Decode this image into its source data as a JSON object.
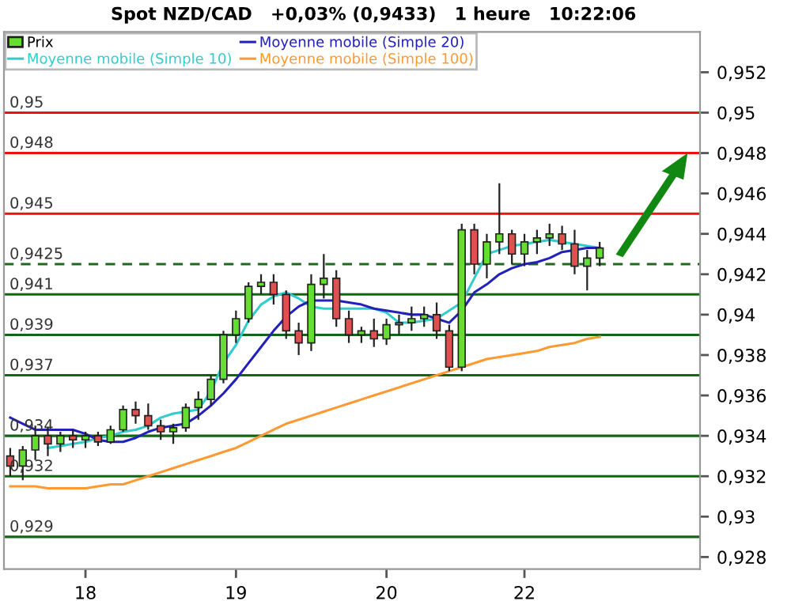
{
  "chart_data": {
    "type": "candlestick",
    "title": "Spot NZD/CAD   +0,03% (0,9433)   1 heure   10:22:06",
    "categories": [
      null,
      null,
      null,
      null,
      null,
      null,
      "18",
      null,
      null,
      null,
      null,
      null,
      null,
      null,
      null,
      null,
      null,
      null,
      "19",
      null,
      null,
      null,
      null,
      null,
      null,
      null,
      null,
      null,
      null,
      null,
      "20",
      null,
      null,
      null,
      null,
      null,
      null,
      null,
      null,
      null,
      null,
      "22",
      null,
      null,
      null,
      null,
      null,
      null
    ],
    "series": [
      {
        "name": "Prix",
        "colors": [
          "#e05050",
          "#66dd33",
          "#66dd33",
          "#e05050",
          "#66dd33",
          "#e05050",
          "#66dd33",
          "#e05050",
          "#66dd33",
          "#66dd33",
          "#e05050",
          "#e05050",
          "#e05050",
          "#66dd33",
          "#66dd33",
          "#66dd33",
          "#66dd33",
          "#66dd33",
          "#66dd33",
          "#66dd33",
          "#66dd33",
          "#e05050",
          "#e05050",
          "#e05050",
          "#66dd33",
          "#66dd33",
          "#e05050",
          "#e05050",
          "#66dd33",
          "#e05050",
          "#66dd33",
          "#66dd33",
          "#66dd33",
          "#66dd33",
          "#e05050",
          "#e05050",
          "#66dd33",
          "#e05050",
          "#66dd33",
          "#66dd33",
          "#e05050",
          "#66dd33",
          "#66dd33",
          "#66dd33",
          "#e05050",
          "#e05050",
          "#66dd33",
          "#66dd33"
        ],
        "ohlc": [
          [
            0.933,
            0.9334,
            0.932,
            0.9325
          ],
          [
            0.9325,
            0.9335,
            0.9318,
            0.9333
          ],
          [
            0.9333,
            0.9345,
            0.9328,
            0.934
          ],
          [
            0.934,
            0.9344,
            0.933,
            0.9336
          ],
          [
            0.9336,
            0.9342,
            0.9332,
            0.934
          ],
          [
            0.934,
            0.9343,
            0.9334,
            0.9338
          ],
          [
            0.9338,
            0.9342,
            0.9334,
            0.934
          ],
          [
            0.934,
            0.9342,
            0.9335,
            0.9337
          ],
          [
            0.9337,
            0.9345,
            0.9336,
            0.9343
          ],
          [
            0.9343,
            0.9355,
            0.9342,
            0.9353
          ],
          [
            0.9353,
            0.9357,
            0.9346,
            0.935
          ],
          [
            0.935,
            0.9356,
            0.9343,
            0.9345
          ],
          [
            0.9345,
            0.9348,
            0.9338,
            0.9342
          ],
          [
            0.9342,
            0.9346,
            0.9336,
            0.9344
          ],
          [
            0.9344,
            0.9356,
            0.9342,
            0.9354
          ],
          [
            0.9354,
            0.9362,
            0.9348,
            0.9358
          ],
          [
            0.9358,
            0.937,
            0.9355,
            0.9368
          ],
          [
            0.9368,
            0.9392,
            0.9366,
            0.939
          ],
          [
            0.939,
            0.9402,
            0.9386,
            0.9398
          ],
          [
            0.9398,
            0.9416,
            0.9396,
            0.9414
          ],
          [
            0.9414,
            0.942,
            0.941,
            0.9416
          ],
          [
            0.9416,
            0.942,
            0.9405,
            0.941
          ],
          [
            0.941,
            0.9412,
            0.9388,
            0.9392
          ],
          [
            0.9392,
            0.9396,
            0.938,
            0.9386
          ],
          [
            0.9386,
            0.942,
            0.9382,
            0.9415
          ],
          [
            0.9415,
            0.943,
            0.9408,
            0.9418
          ],
          [
            0.9418,
            0.9422,
            0.9394,
            0.9398
          ],
          [
            0.9398,
            0.9402,
            0.9386,
            0.939
          ],
          [
            0.939,
            0.9394,
            0.9386,
            0.9392
          ],
          [
            0.9392,
            0.9398,
            0.9384,
            0.9388
          ],
          [
            0.9388,
            0.9398,
            0.9385,
            0.9395
          ],
          [
            0.9395,
            0.94,
            0.939,
            0.9396
          ],
          [
            0.9396,
            0.9404,
            0.9392,
            0.9398
          ],
          [
            0.9398,
            0.9404,
            0.9394,
            0.94
          ],
          [
            0.94,
            0.9406,
            0.9388,
            0.9392
          ],
          [
            0.9392,
            0.9395,
            0.9372,
            0.9374
          ],
          [
            0.9374,
            0.9445,
            0.9372,
            0.9442
          ],
          [
            0.9442,
            0.9445,
            0.942,
            0.9425
          ],
          [
            0.9425,
            0.944,
            0.9418,
            0.9436
          ],
          [
            0.9436,
            0.9465,
            0.943,
            0.944
          ],
          [
            0.944,
            0.9442,
            0.9425,
            0.943
          ],
          [
            0.943,
            0.944,
            0.9424,
            0.9436
          ],
          [
            0.9436,
            0.9442,
            0.943,
            0.9438
          ],
          [
            0.9438,
            0.9445,
            0.9434,
            0.944
          ],
          [
            0.944,
            0.9444,
            0.9432,
            0.9435
          ],
          [
            0.9435,
            0.9442,
            0.942,
            0.9424
          ],
          [
            0.9424,
            0.9432,
            0.9412,
            0.9428
          ],
          [
            0.9428,
            0.9436,
            0.9424,
            0.9433
          ]
        ]
      },
      {
        "name": "Moyenne mobile (Simple 10)",
        "type": "line",
        "color": "#33cccc",
        "values": [
          null,
          null,
          null,
          0.9334,
          0.9335,
          0.9336,
          0.9337,
          0.9339,
          0.934,
          0.9342,
          0.9343,
          0.9345,
          0.9349,
          0.9351,
          0.9352,
          0.9353,
          0.9362,
          0.9376,
          0.9385,
          0.9397,
          0.9405,
          0.9409,
          0.9411,
          0.9408,
          0.9404,
          0.9403,
          0.9403,
          0.9403,
          0.9403,
          0.9403,
          0.9401,
          0.9396,
          0.9396,
          0.9397,
          0.9398,
          0.9402,
          0.9406,
          0.9418,
          0.943,
          0.9432,
          0.9434,
          0.9435,
          0.9436,
          0.9437,
          0.9436,
          0.9435,
          0.9434,
          0.9433
        ]
      },
      {
        "name": "Moyenne mobile (Simple 20)",
        "type": "line",
        "color": "#2222bb",
        "values": [
          0.9349,
          0.9346,
          0.9343,
          0.9343,
          0.9343,
          0.9343,
          0.9341,
          0.9338,
          0.9337,
          0.9337,
          0.9339,
          0.9342,
          0.9344,
          0.9345,
          0.9346,
          0.935,
          0.9355,
          0.9361,
          0.9368,
          0.9376,
          0.9384,
          0.9392,
          0.9399,
          0.9404,
          0.9407,
          0.9407,
          0.9407,
          0.9406,
          0.9405,
          0.9403,
          0.9402,
          0.9401,
          0.94,
          0.94,
          0.9398,
          0.9396,
          0.9402,
          0.9411,
          0.9415,
          0.942,
          0.9423,
          0.9425,
          0.9426,
          0.9428,
          0.9431,
          0.9432,
          0.9433,
          0.9433
        ]
      },
      {
        "name": "Moyenne mobile (Simple 100)",
        "type": "line",
        "color": "#ff9933",
        "values": [
          0.9315,
          0.9315,
          0.9315,
          0.9314,
          0.9314,
          0.9314,
          0.9314,
          0.9315,
          0.9316,
          0.9316,
          0.9318,
          0.932,
          0.9322,
          0.9324,
          0.9326,
          0.9328,
          0.933,
          0.9332,
          0.9334,
          0.9337,
          0.934,
          0.9343,
          0.9346,
          0.9348,
          0.935,
          0.9352,
          0.9354,
          0.9356,
          0.9358,
          0.936,
          0.9362,
          0.9364,
          0.9366,
          0.9368,
          0.937,
          0.9372,
          0.9374,
          0.9376,
          0.9378,
          0.9379,
          0.938,
          0.9381,
          0.9382,
          0.9384,
          0.9385,
          0.9386,
          0.9388,
          0.9389
        ]
      }
    ],
    "ylim": [
      0.9274,
      0.954
    ],
    "yticks": [
      {
        "value": 0.928,
        "label": "0,928"
      },
      {
        "value": 0.93,
        "label": "0,93"
      },
      {
        "value": 0.932,
        "label": "0,932"
      },
      {
        "value": 0.934,
        "label": "0,934"
      },
      {
        "value": 0.936,
        "label": "0,936"
      },
      {
        "value": 0.938,
        "label": "0,938"
      },
      {
        "value": 0.94,
        "label": "0,94"
      },
      {
        "value": 0.942,
        "label": "0,942"
      },
      {
        "value": 0.944,
        "label": "0,944"
      },
      {
        "value": 0.946,
        "label": "0,946"
      },
      {
        "value": 0.948,
        "label": "0,948"
      },
      {
        "value": 0.95,
        "label": "0,95"
      },
      {
        "value": 0.952,
        "label": "0,952"
      }
    ],
    "ref_lines": [
      {
        "axis": "y",
        "value": 0.95,
        "label": "0,95",
        "color": "#ee1111",
        "line_style": "solid"
      },
      {
        "axis": "y",
        "value": 0.948,
        "label": "0,948",
        "color": "#ee1111",
        "line_style": "solid"
      },
      {
        "axis": "y",
        "value": 0.945,
        "label": "0,945",
        "color": "#ee1111",
        "line_style": "solid"
      },
      {
        "axis": "y",
        "value": 0.9425,
        "label": "0,9425",
        "color": "#226622",
        "line_style": "dashed"
      },
      {
        "axis": "y",
        "value": 0.941,
        "label": "0,941",
        "color": "#116611",
        "line_style": "solid"
      },
      {
        "axis": "y",
        "value": 0.939,
        "label": "0,939",
        "color": "#116611",
        "line_style": "solid"
      },
      {
        "axis": "y",
        "value": 0.937,
        "label": "0,937",
        "color": "#116611",
        "line_style": "solid"
      },
      {
        "axis": "y",
        "value": 0.934,
        "label": "0,934",
        "color": "#116611",
        "line_style": "solid"
      },
      {
        "axis": "y",
        "value": 0.932,
        "label": "0,932",
        "color": "#116611",
        "line_style": "solid"
      },
      {
        "axis": "y",
        "value": 0.929,
        "label": "0,929",
        "color": "#116611",
        "line_style": "solid"
      }
    ],
    "legend": "top left",
    "grid": false
  }
}
